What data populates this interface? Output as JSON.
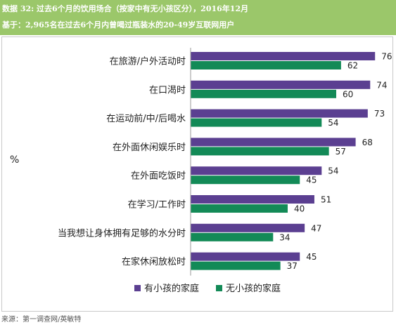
{
  "header": {
    "title": "数据 32: 过去6个月的饮用场合（按家中有无小孩区分），2016年12月",
    "subtitle": "基于：2,965名在过去6个月内曾喝过瓶装水的20-49岁互联网用户"
  },
  "chart_data": {
    "type": "bar",
    "orientation": "horizontal",
    "ylabel": "%",
    "categories": [
      "在旅游/户外活动时",
      "在口渴时",
      "在运动前/中/后喝水",
      "在外面休闲娱乐时",
      "在外面吃饭时",
      "在学习/工作时",
      "当我想让身体拥有足够的水分时",
      "在家休闲放松时"
    ],
    "series": [
      {
        "name": "有小孩的家庭",
        "color": "#5b3f91",
        "values": [
          76,
          74,
          73,
          68,
          54,
          51,
          47,
          45
        ]
      },
      {
        "name": "无小孩的家庭",
        "color": "#138a57",
        "values": [
          62,
          60,
          54,
          57,
          45,
          40,
          34,
          37
        ]
      }
    ],
    "xlim": [
      0,
      80
    ],
    "grid": false,
    "legend_position": "bottom"
  },
  "source": "来源：第一调查网/英敏特"
}
